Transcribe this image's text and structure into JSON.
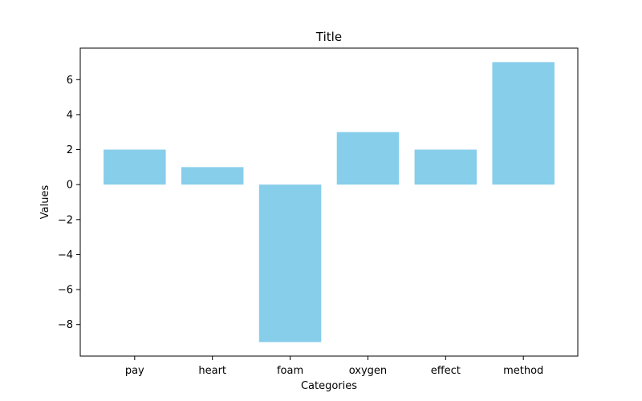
{
  "chart_data": {
    "type": "bar",
    "title": "Title",
    "xlabel": "Categories",
    "ylabel": "Values",
    "categories": [
      "pay",
      "heart",
      "foam",
      "oxygen",
      "effect",
      "method"
    ],
    "values": [
      2,
      1,
      -9,
      3,
      2,
      7
    ],
    "ylim": [
      -9.8,
      7.8
    ],
    "yticks": [
      -8,
      -6,
      -4,
      -2,
      0,
      2,
      4,
      6
    ],
    "ytick_labels": [
      "−8",
      "−6",
      "−4",
      "−2",
      "0",
      "2",
      "4",
      "6"
    ],
    "bar_color": "#87ceeb",
    "grid": false,
    "legend": "none"
  }
}
